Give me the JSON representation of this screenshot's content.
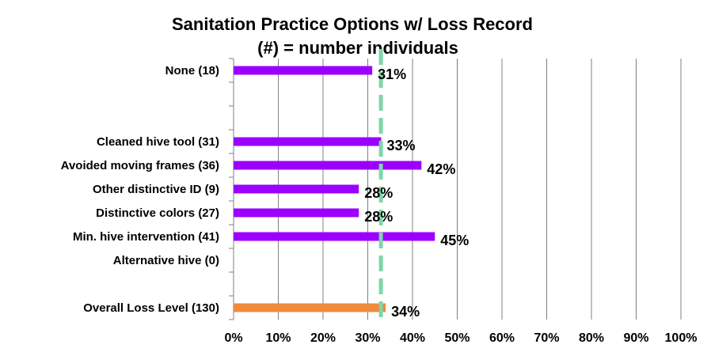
{
  "chart_data": {
    "type": "bar",
    "orientation": "horizontal",
    "title": "Sanitation Practice Options w/ Loss Record",
    "subtitle": "(#) = number individuals",
    "xlabel": "",
    "ylabel": "",
    "xlim": [
      0,
      100
    ],
    "x_ticks": [
      "0%",
      "10%",
      "20%",
      "30%",
      "40%",
      "50%",
      "60%",
      "70%",
      "80%",
      "90%",
      "100%"
    ],
    "grid": "vertical",
    "reference_line": {
      "value": 34,
      "style": "dashed",
      "color": "#7fd6a8"
    },
    "categories": [
      "None (18)",
      "",
      "",
      "Cleaned hive tool (31)",
      "Avoided moving frames (36)",
      "Other distinctive ID (9)",
      "Distinctive colors (27)",
      "Min. hive intervention (41)",
      "Alternative hive (0)",
      "",
      "Overall Loss Level (130)"
    ],
    "values": [
      31,
      null,
      null,
      33,
      42,
      28,
      28,
      45,
      null,
      null,
      34
    ],
    "labels": [
      "31%",
      "",
      "",
      "33%",
      "42%",
      "28%",
      "28%",
      "45%",
      "",
      "",
      "34%"
    ],
    "colors": {
      "bar": "#9b00ff",
      "overall_bar": "#f08a3c",
      "grid": "#808080",
      "reference": "#7fd6a8"
    }
  }
}
